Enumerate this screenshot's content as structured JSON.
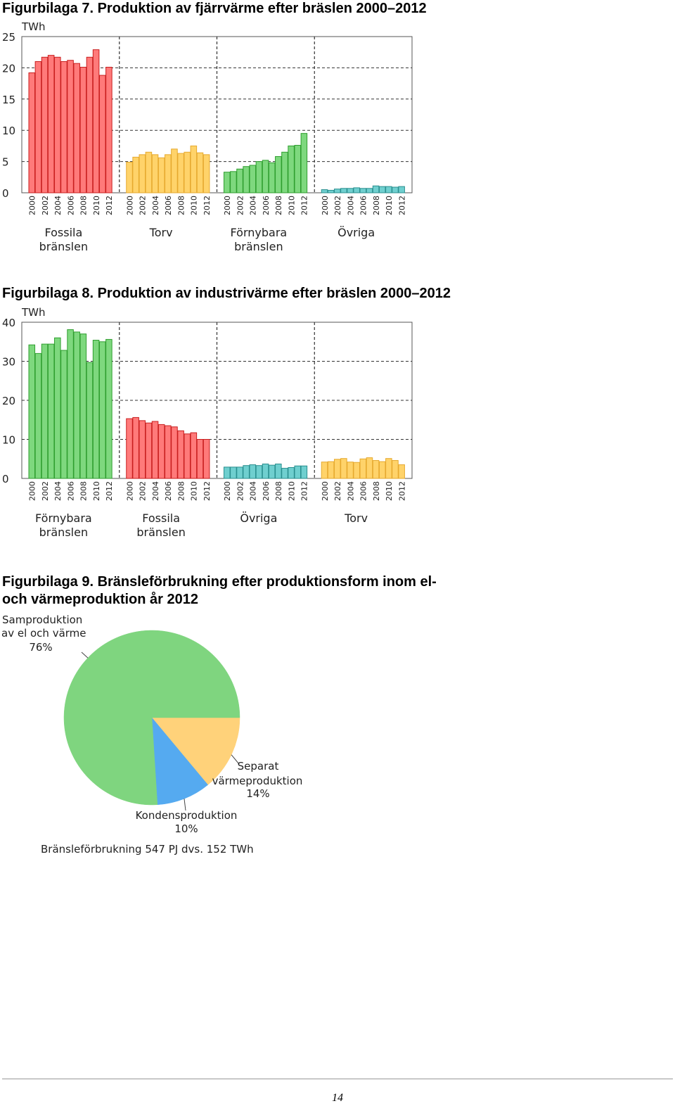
{
  "figures": [
    {
      "title": "Figurbilaga 7. Produktion av fjärrvärme efter bräslen 2000–2012"
    },
    {
      "title": "Figurbilaga 8. Produktion av industrivärme efter bräslen 2000–2012"
    },
    {
      "title_line1": "Figurbilaga 9. Bränsleförbrukning efter produktionsform inom el-",
      "title_line2": "och värmeproduktion år 2012"
    }
  ],
  "colors": {
    "red": "#ff7a7a",
    "red_edge": "#c81e1e",
    "yellow": "#ffd36a",
    "yellow_edge": "#e6a92e",
    "green": "#7ed87e",
    "green_edge": "#2f9e2f",
    "teal": "#6fcfcf",
    "teal_edge": "#2a8f8f"
  },
  "chart_data": [
    {
      "type": "bar",
      "unit_label": "TWh",
      "ylim": [
        0,
        25
      ],
      "yticks": [
        "0",
        "5",
        "10",
        "15",
        "20",
        "25"
      ],
      "grid": true,
      "year_labels": [
        "2000",
        "2002",
        "2004",
        "2006",
        "2008",
        "2010",
        "2012"
      ],
      "groups": [
        {
          "name": "Fossila bränslen",
          "label_lines": [
            "Fossila",
            "bränslen"
          ],
          "color": "red",
          "values": [
            19.2,
            21.0,
            21.7,
            22.0,
            21.7,
            21.0,
            21.2,
            20.7,
            20.1,
            21.7,
            22.9,
            18.8,
            20.1
          ]
        },
        {
          "name": "Torv",
          "label_lines": [
            "Torv"
          ],
          "color": "yellow",
          "values": [
            4.9,
            5.7,
            6.1,
            6.5,
            6.1,
            5.6,
            6.1,
            7.0,
            6.3,
            6.5,
            7.5,
            6.4,
            6.1
          ]
        },
        {
          "name": "Förnybara bränslen",
          "label_lines": [
            "Förnybara",
            "bränslen"
          ],
          "color": "green",
          "values": [
            3.3,
            3.4,
            3.8,
            4.2,
            4.4,
            5.0,
            5.2,
            4.8,
            5.8,
            6.5,
            7.5,
            7.6,
            9.5
          ]
        },
        {
          "name": "Övriga",
          "label_lines": [
            "Övriga"
          ],
          "color": "teal",
          "values": [
            0.5,
            0.4,
            0.6,
            0.7,
            0.7,
            0.8,
            0.7,
            0.7,
            1.1,
            1.0,
            1.0,
            0.9,
            1.0
          ]
        }
      ]
    },
    {
      "type": "bar",
      "unit_label": "TWh",
      "ylim": [
        0,
        40
      ],
      "yticks": [
        "0",
        "10",
        "20",
        "30",
        "40"
      ],
      "grid": true,
      "year_labels": [
        "2000",
        "2002",
        "2004",
        "2006",
        "2008",
        "2010",
        "2012"
      ],
      "groups": [
        {
          "name": "Förnybara bränslen",
          "label_lines": [
            "Förnybara",
            "bränslen"
          ],
          "color": "green",
          "values": [
            34.2,
            32.0,
            34.4,
            34.4,
            36.0,
            32.8,
            38.1,
            37.5,
            37.0,
            29.7,
            35.4,
            35.0,
            35.6
          ]
        },
        {
          "name": "Fossila bränslen",
          "label_lines": [
            "Fossila",
            "bränslen"
          ],
          "color": "red",
          "values": [
            15.3,
            15.6,
            14.8,
            14.2,
            14.6,
            13.8,
            13.5,
            13.2,
            12.2,
            11.4,
            11.7,
            10.0,
            10.0
          ]
        },
        {
          "name": "Övriga",
          "label_lines": [
            "Övriga"
          ],
          "color": "teal",
          "values": [
            2.9,
            2.9,
            2.9,
            3.3,
            3.5,
            3.3,
            3.7,
            3.4,
            3.7,
            2.6,
            2.8,
            3.2,
            3.2
          ]
        },
        {
          "name": "Torv",
          "label_lines": [
            "Torv"
          ],
          "color": "yellow",
          "values": [
            4.2,
            4.3,
            4.9,
            5.1,
            4.2,
            4.1,
            5.0,
            5.3,
            4.6,
            4.3,
            5.1,
            4.6,
            3.5
          ]
        }
      ]
    },
    {
      "type": "pie",
      "slices": [
        {
          "label_lines": [
            "Samproduktion",
            "av el och värme",
            "76%"
          ],
          "value": 76,
          "color": "#7fd57f"
        },
        {
          "label_lines": [
            "Kondensproduktion",
            "10%"
          ],
          "value": 10,
          "color": "#55aaf0"
        },
        {
          "label_lines": [
            "Separat",
            "värmeproduktion",
            "14%"
          ],
          "value": 14,
          "color": "#ffd27a"
        }
      ],
      "caption": "Bränsleförbrukning 547 PJ dvs. 152 TWh"
    }
  ],
  "page_number": "14"
}
